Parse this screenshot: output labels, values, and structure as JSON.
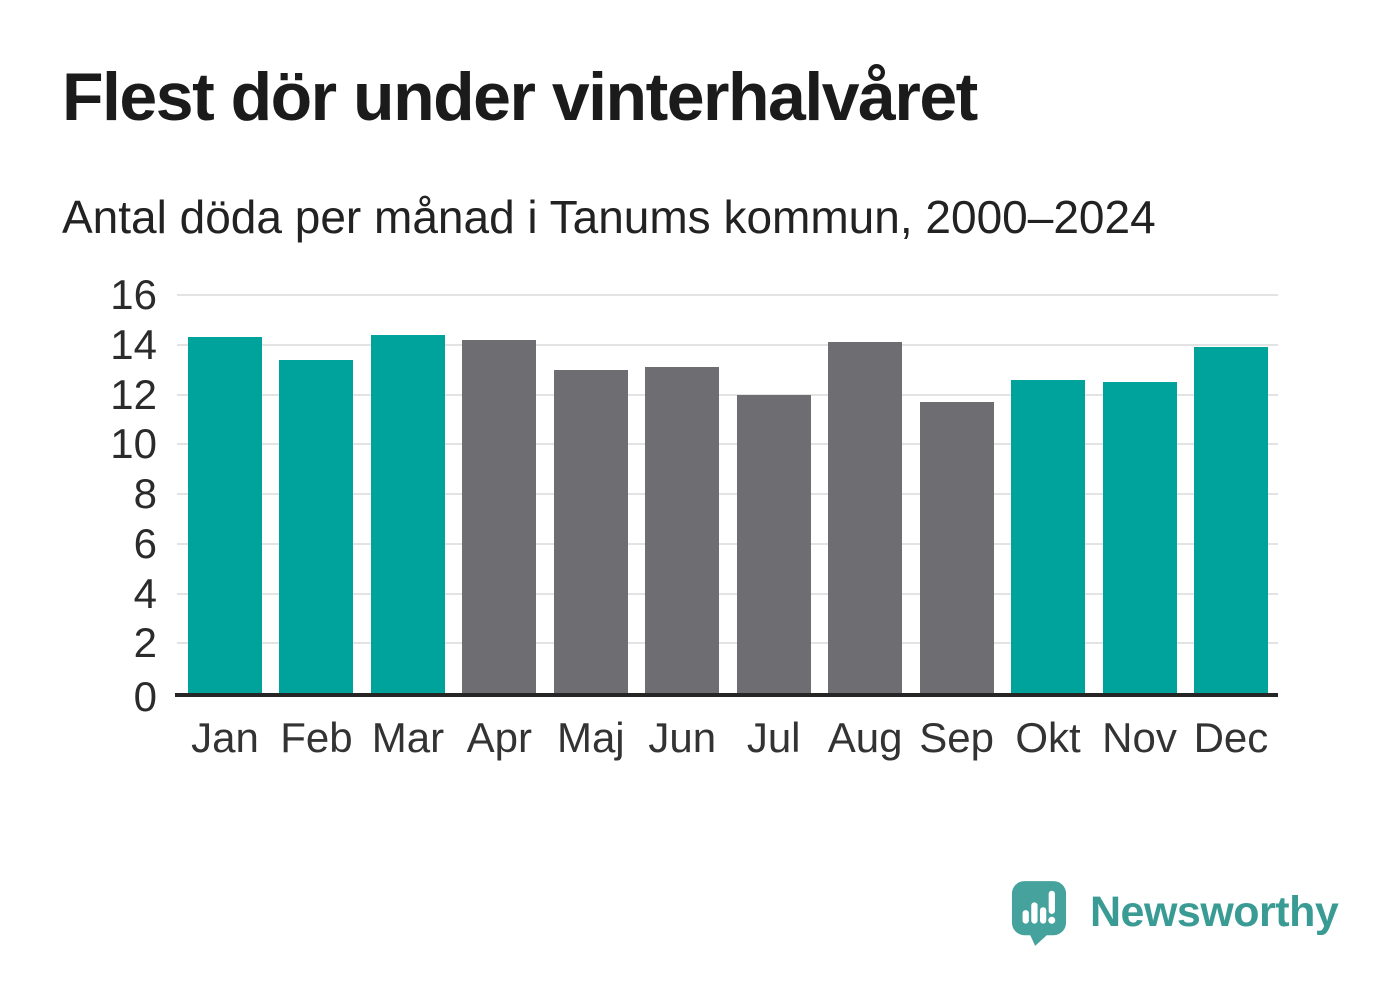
{
  "chart_data": {
    "type": "bar",
    "title": "Flest dör under vinterhalvåret",
    "subtitle": "Antal döda per månad i Tanums kommun, 2000–2024",
    "categories": [
      "Jan",
      "Feb",
      "Mar",
      "Apr",
      "Maj",
      "Jun",
      "Jul",
      "Aug",
      "Sep",
      "Okt",
      "Nov",
      "Dec"
    ],
    "values": [
      14.3,
      13.4,
      14.4,
      14.2,
      13.0,
      13.1,
      12.0,
      14.1,
      11.7,
      12.6,
      12.5,
      13.9
    ],
    "bar_colors": [
      "#00A39B",
      "#00A39B",
      "#00A39B",
      "#6E6D72",
      "#6E6D72",
      "#6E6D72",
      "#6E6D72",
      "#6E6D72",
      "#6E6D72",
      "#00A39B",
      "#00A39B",
      "#00A39B"
    ],
    "xlabel": "",
    "ylabel": "",
    "ylim": [
      0,
      16
    ],
    "yticks": [
      0,
      2,
      4,
      6,
      8,
      10,
      12,
      14,
      16
    ],
    "grid": "horizontal",
    "legend": "none"
  },
  "colors": {
    "winter_accent": "#00A39B",
    "summer_gray": "#6E6D72",
    "gridline": "#e3e3e3",
    "axis_line": "#262626",
    "brand_teal": "#3a9b95"
  },
  "footer": {
    "brand": "Newsworthy"
  }
}
